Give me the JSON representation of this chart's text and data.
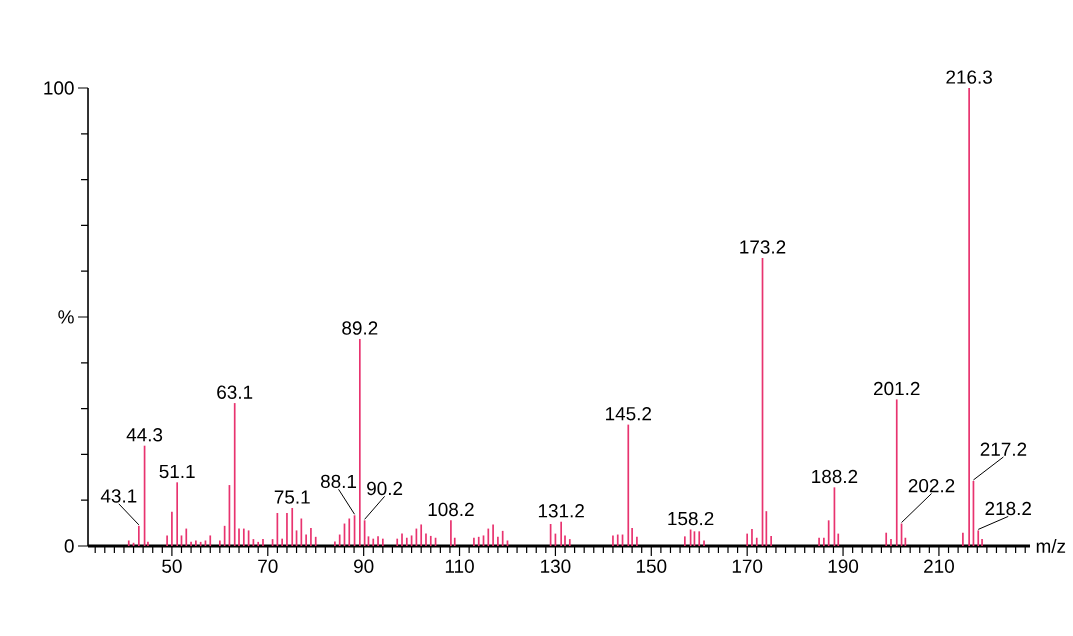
{
  "chart_data": {
    "type": "bar",
    "color": "#e8336f",
    "xlabel": "m/z",
    "x": [
      41,
      42,
      43.1,
      44.3,
      45,
      49,
      50,
      51.1,
      52,
      53,
      54,
      55,
      56,
      57,
      58,
      60,
      61,
      62,
      63.1,
      64,
      65,
      66,
      67,
      68,
      69,
      71,
      72,
      73,
      74,
      75.1,
      76,
      77,
      78,
      79,
      80,
      84,
      85,
      86,
      87,
      88.1,
      89.2,
      90.2,
      91,
      92,
      93,
      94,
      97,
      98,
      99,
      100,
      101,
      102,
      103,
      104,
      105,
      108.2,
      109,
      113,
      114,
      115,
      116,
      117,
      118,
      119,
      120,
      129,
      130,
      131.2,
      132,
      133,
      142,
      143,
      144,
      145.2,
      146,
      147,
      157,
      158.2,
      159,
      160,
      161,
      170,
      171,
      172,
      173.2,
      174,
      175,
      185,
      186,
      187,
      188.2,
      189,
      199,
      200,
      201.2,
      202.2,
      203,
      215,
      216.3,
      217.2,
      218.2,
      219
    ],
    "values": [
      1.2,
      0.7,
      4.4,
      21.9,
      0.9,
      2.3,
      7.5,
      13.9,
      2.3,
      3.8,
      0.9,
      1.2,
      0.9,
      1.2,
      2.3,
      1.2,
      4.4,
      13.3,
      31.2,
      3.8,
      3.8,
      3.4,
      1.5,
      0.9,
      1.5,
      1.5,
      7.2,
      1.6,
      7.2,
      8.3,
      3.4,
      6.0,
      2.5,
      3.9,
      2.0,
      1.0,
      2.5,
      4.9,
      6.0,
      6.7,
      45.2,
      5.6,
      2.1,
      1.6,
      2.1,
      1.6,
      1.6,
      2.7,
      1.8,
      2.3,
      3.8,
      4.7,
      2.7,
      2.2,
      1.8,
      5.6,
      1.8,
      1.8,
      2.0,
      2.3,
      3.8,
      4.7,
      2.0,
      3.3,
      1.2,
      4.8,
      2.7,
      5.3,
      2.3,
      1.5,
      2.3,
      2.5,
      2.5,
      26.5,
      3.9,
      2.0,
      2.1,
      3.6,
      3.2,
      3.2,
      1.2,
      2.7,
      3.7,
      1.8,
      62.9,
      7.6,
      2.2,
      1.8,
      1.8,
      5.6,
      12.8,
      2.7,
      2.9,
      1.5,
      32.0,
      4.9,
      1.8,
      2.9,
      100,
      14.2,
      3.4,
      1.5
    ],
    "xlim": [
      32.5,
      229
    ],
    "ylim": [
      0,
      100
    ],
    "xticks": [
      {
        "value": 34,
        "label": null
      },
      {
        "value": 36,
        "label": null
      },
      {
        "value": 38,
        "label": null
      },
      {
        "value": 40,
        "label": null
      },
      {
        "value": 42,
        "label": null
      },
      {
        "value": 44,
        "label": null
      },
      {
        "value": 46,
        "label": null
      },
      {
        "value": 48,
        "label": null
      },
      50,
      {
        "value": 52,
        "label": null
      },
      {
        "value": 54,
        "label": null
      },
      {
        "value": 56,
        "label": null
      },
      {
        "value": 58,
        "label": null
      },
      {
        "value": 60,
        "label": null
      },
      {
        "value": 62,
        "label": null
      },
      {
        "value": 64,
        "label": null
      },
      {
        "value": 66,
        "label": null
      },
      {
        "value": 68,
        "label": null
      },
      70,
      {
        "value": 72,
        "label": null
      },
      {
        "value": 74,
        "label": null
      },
      {
        "value": 76,
        "label": null
      },
      {
        "value": 78,
        "label": null
      },
      {
        "value": 80,
        "label": null
      },
      {
        "value": 82,
        "label": null
      },
      {
        "value": 84,
        "label": null
      },
      {
        "value": 86,
        "label": null
      },
      {
        "value": 88,
        "label": null
      },
      90,
      {
        "value": 92,
        "label": null
      },
      {
        "value": 94,
        "label": null
      },
      {
        "value": 96,
        "label": null
      },
      {
        "value": 98,
        "label": null
      },
      {
        "value": 100,
        "label": null
      },
      {
        "value": 102,
        "label": null
      },
      {
        "value": 104,
        "label": null
      },
      {
        "value": 106,
        "label": null
      },
      {
        "value": 108,
        "label": null
      },
      110,
      {
        "value": 112,
        "label": null
      },
      {
        "value": 114,
        "label": null
      },
      {
        "value": 116,
        "label": null
      },
      {
        "value": 118,
        "label": null
      },
      {
        "value": 120,
        "label": null
      },
      {
        "value": 122,
        "label": null
      },
      {
        "value": 124,
        "label": null
      },
      {
        "value": 126,
        "label": null
      },
      {
        "value": 128,
        "label": null
      },
      130,
      {
        "value": 132,
        "label": null
      },
      {
        "value": 134,
        "label": null
      },
      {
        "value": 136,
        "label": null
      },
      {
        "value": 138,
        "label": null
      },
      {
        "value": 140,
        "label": null
      },
      {
        "value": 142,
        "label": null
      },
      {
        "value": 144,
        "label": null
      },
      {
        "value": 146,
        "label": null
      },
      {
        "value": 148,
        "label": null
      },
      150,
      {
        "value": 152,
        "label": null
      },
      {
        "value": 154,
        "label": null
      },
      {
        "value": 156,
        "label": null
      },
      {
        "value": 158,
        "label": null
      },
      {
        "value": 160,
        "label": null
      },
      {
        "value": 162,
        "label": null
      },
      {
        "value": 164,
        "label": null
      },
      {
        "value": 166,
        "label": null
      },
      {
        "value": 168,
        "label": null
      },
      170,
      {
        "value": 172,
        "label": null
      },
      {
        "value": 174,
        "label": null
      },
      {
        "value": 176,
        "label": null
      },
      {
        "value": 178,
        "label": null
      },
      {
        "value": 180,
        "label": null
      },
      {
        "value": 182,
        "label": null
      },
      {
        "value": 184,
        "label": null
      },
      {
        "value": 186,
        "label": null
      },
      {
        "value": 188,
        "label": null
      },
      190,
      {
        "value": 192,
        "label": null
      },
      {
        "value": 194,
        "label": null
      },
      {
        "value": 196,
        "label": null
      },
      {
        "value": 198,
        "label": null
      },
      {
        "value": 200,
        "label": null
      },
      {
        "value": 202,
        "label": null
      },
      {
        "value": 204,
        "label": null
      },
      {
        "value": 206,
        "label": null
      },
      {
        "value": 208,
        "label": null
      },
      210,
      {
        "value": 212,
        "label": null
      },
      {
        "value": 214,
        "label": null
      },
      {
        "value": 216,
        "label": null
      },
      {
        "value": 218,
        "label": null
      },
      {
        "value": 220,
        "label": null
      },
      {
        "value": 222,
        "label": null
      },
      {
        "value": 224,
        "label": null
      },
      {
        "value": 226,
        "label": null
      },
      {
        "value": 228,
        "label": null
      }
    ],
    "yticks": [
      0,
      {
        "value": 10,
        "label": null
      },
      {
        "value": 20,
        "label": null
      },
      {
        "value": 30,
        "label": null
      },
      {
        "value": 40,
        "label": null
      },
      {
        "value": 50,
        "label": "%"
      },
      {
        "value": 60,
        "label": null
      },
      {
        "value": 70,
        "label": null
      },
      {
        "value": 80,
        "label": null
      },
      {
        "value": 90,
        "label": null
      },
      100
    ],
    "annotations": [
      {
        "text": "43.1",
        "x": 43.1,
        "y": 4.4
      },
      {
        "text": "44.3",
        "x": 44.3,
        "y": 21.9
      },
      {
        "text": "51.1",
        "x": 51.1,
        "y": 13.9
      },
      {
        "text": "63.1",
        "x": 63.1,
        "y": 31.2
      },
      {
        "text": "75.1",
        "x": 75.1,
        "y": 8.3
      },
      {
        "text": "88.1",
        "x": 88.1,
        "y": 6.7
      },
      {
        "text": "89.2",
        "x": 89.2,
        "y": 45.2
      },
      {
        "text": "90.2",
        "x": 90.2,
        "y": 5.6
      },
      {
        "text": "108.2",
        "x": 108.2,
        "y": 5.6
      },
      {
        "text": "131.2",
        "x": 131.2,
        "y": 5.3
      },
      {
        "text": "145.2",
        "x": 145.2,
        "y": 26.5
      },
      {
        "text": "158.2",
        "x": 158.2,
        "y": 3.6
      },
      {
        "text": "173.2",
        "x": 173.2,
        "y": 62.9
      },
      {
        "text": "188.2",
        "x": 188.2,
        "y": 12.8
      },
      {
        "text": "201.2",
        "x": 201.2,
        "y": 32.0
      },
      {
        "text": "202.2",
        "x": 202.2,
        "y": 4.9
      },
      {
        "text": "216.3",
        "x": 216.3,
        "y": 100
      },
      {
        "text": "217.2",
        "x": 217.2,
        "y": 14.2
      },
      {
        "text": "218.2",
        "x": 218.2,
        "y": 3.4
      }
    ]
  }
}
